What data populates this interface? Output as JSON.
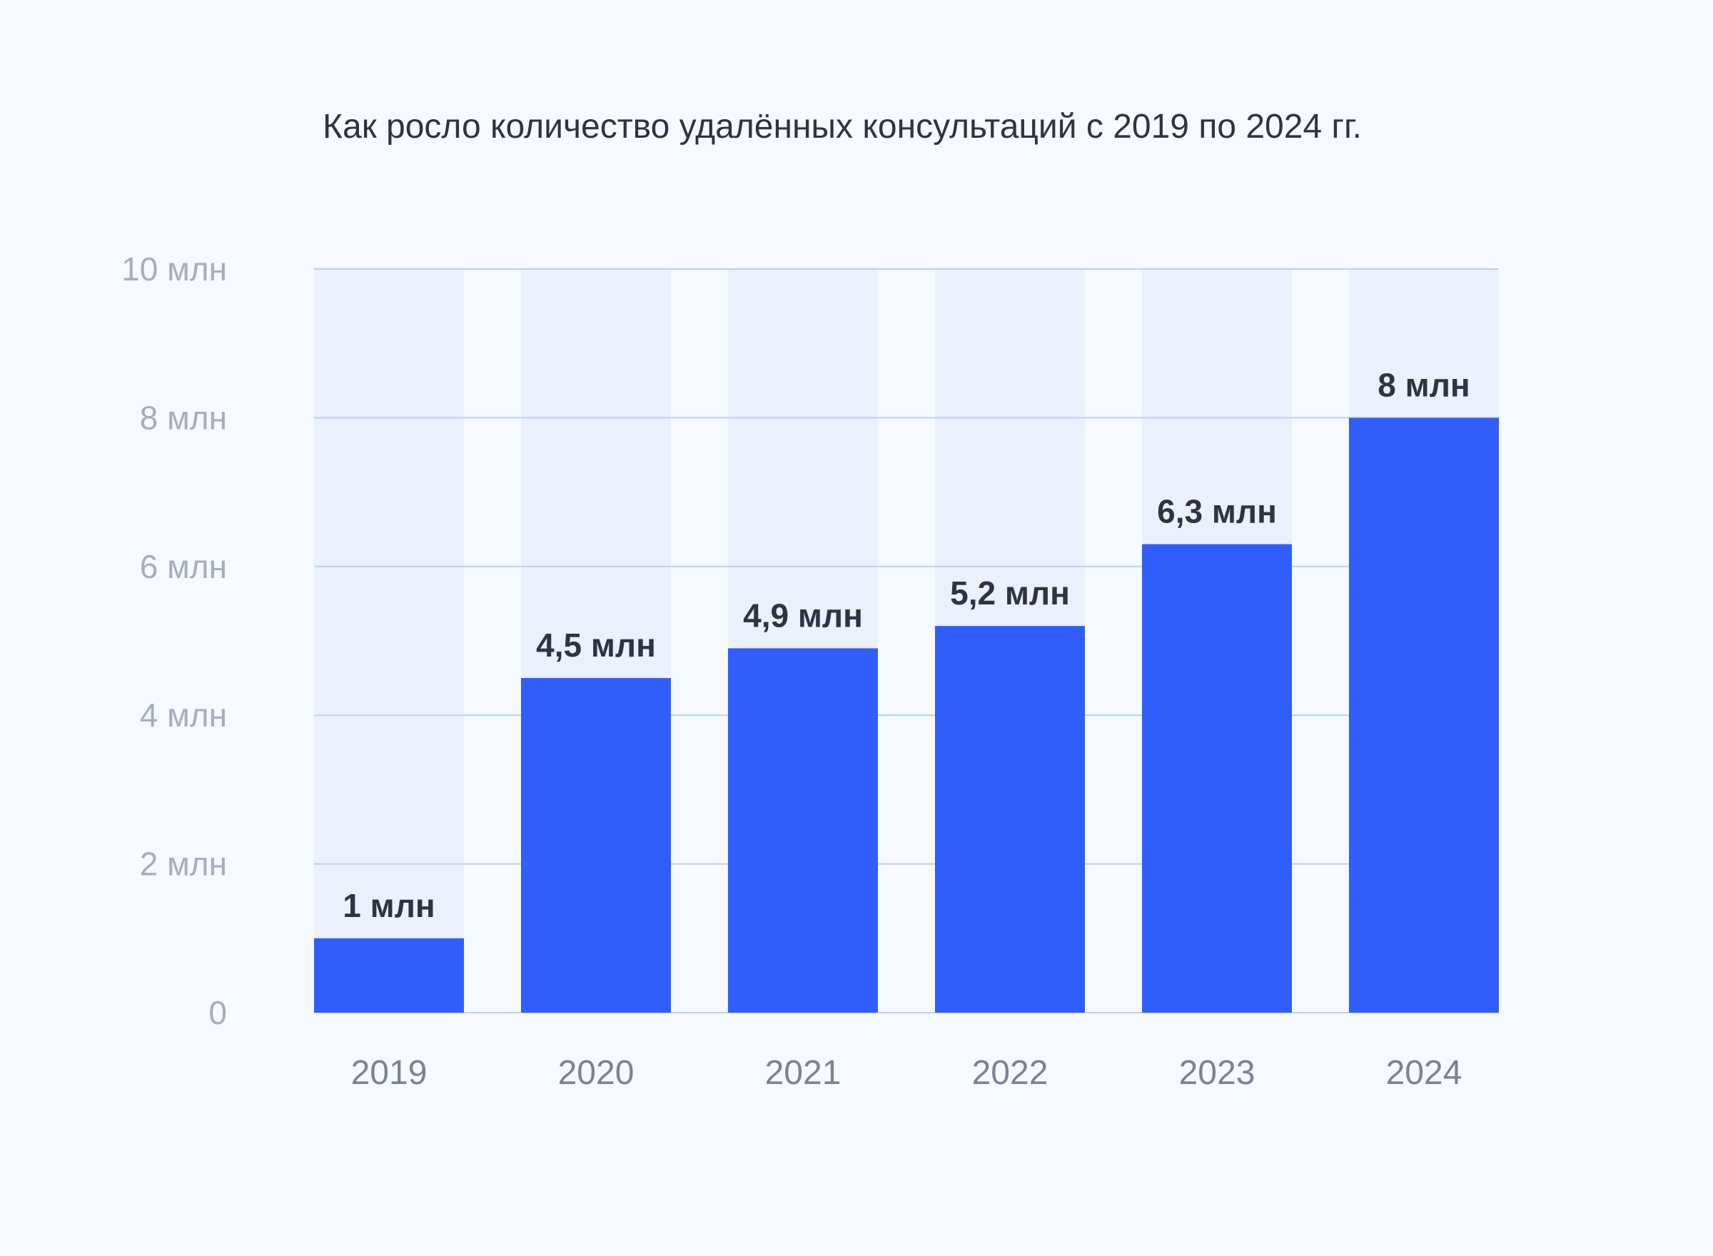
{
  "chart_data": {
    "type": "bar",
    "title": "Как росло количество удалённых консультаций с 2019 по 2024 гг.",
    "xlabel": "",
    "ylabel": "",
    "unit": "млн",
    "categories": [
      "2019",
      "2020",
      "2021",
      "2022",
      "2023",
      "2024"
    ],
    "values": [
      1,
      4.5,
      4.9,
      5.2,
      6.3,
      8
    ],
    "data_labels": [
      "1 млн",
      "4,5 млн",
      "4,9 млн",
      "5,2 млн",
      "6,3 млн",
      "8 млн"
    ],
    "ylim": [
      0,
      10
    ],
    "yticks": [
      0,
      2,
      4,
      6,
      8,
      10
    ],
    "ytick_labels": [
      "0",
      "2 млн",
      "4 млн",
      "6 млн",
      "8 млн",
      "10 млн"
    ],
    "grid": true,
    "legend": "none",
    "colors": {
      "bar": "#315efb",
      "bar_background": "#ebf1fc",
      "grid": "#bcd0ef",
      "data_label": "#2e3442",
      "tick_label": "#a6adbd",
      "category_label": "#7b8294",
      "background": "#f6f9fd"
    }
  }
}
